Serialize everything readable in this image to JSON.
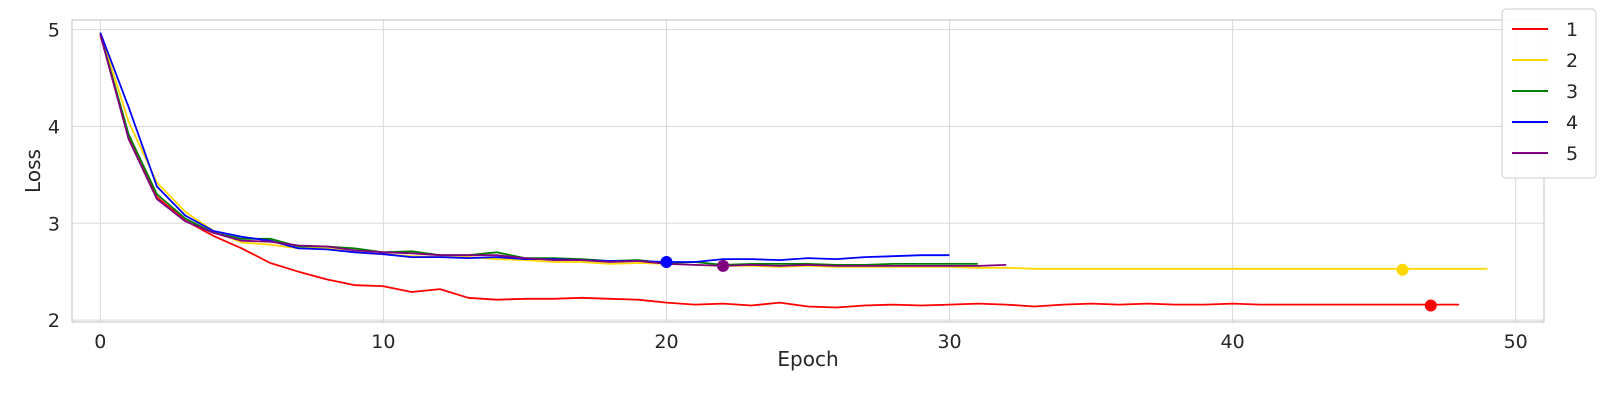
{
  "chart_data": {
    "type": "line",
    "title": "",
    "xlabel": "Epoch",
    "ylabel": "Loss",
    "xlim": [
      -1,
      51
    ],
    "ylim": [
      1.98,
      5.1
    ],
    "xticks": [
      0,
      10,
      20,
      30,
      40,
      50
    ],
    "yticks": [
      2,
      3,
      4,
      5
    ],
    "grid": true,
    "legend_position": "top-right",
    "series": [
      {
        "name": "1",
        "color": "#ff0000",
        "values": [
          4.95,
          3.9,
          3.27,
          3.03,
          2.87,
          2.74,
          2.59,
          2.5,
          2.42,
          2.36,
          2.35,
          2.29,
          2.32,
          2.23,
          2.21,
          2.22,
          2.22,
          2.23,
          2.22,
          2.21,
          2.18,
          2.16,
          2.17,
          2.15,
          2.18,
          2.14,
          2.13,
          2.15,
          2.16,
          2.15,
          2.16,
          2.17,
          2.16,
          2.14,
          2.16,
          2.17,
          2.16,
          2.17,
          2.16,
          2.16,
          2.17,
          2.16,
          2.16,
          2.16,
          2.16,
          2.16,
          2.16,
          2.16,
          2.16
        ],
        "marker": {
          "x": 47,
          "y": 2.15
        }
      },
      {
        "name": "2",
        "color": "#ffd700",
        "values": [
          4.97,
          4.05,
          3.42,
          3.12,
          2.92,
          2.8,
          2.78,
          2.74,
          2.74,
          2.7,
          2.68,
          2.66,
          2.65,
          2.65,
          2.63,
          2.62,
          2.6,
          2.6,
          2.58,
          2.59,
          2.58,
          2.57,
          2.56,
          2.56,
          2.55,
          2.56,
          2.55,
          2.55,
          2.55,
          2.55,
          2.55,
          2.54,
          2.54,
          2.53,
          2.53,
          2.53,
          2.53,
          2.53,
          2.53,
          2.53,
          2.53,
          2.53,
          2.53,
          2.53,
          2.53,
          2.53,
          2.53,
          2.53,
          2.53,
          2.53
        ],
        "marker": {
          "x": 46,
          "y": 2.52
        }
      },
      {
        "name": "3",
        "color": "#008000",
        "values": [
          4.95,
          3.92,
          3.3,
          3.05,
          2.9,
          2.84,
          2.84,
          2.76,
          2.76,
          2.74,
          2.7,
          2.71,
          2.67,
          2.67,
          2.7,
          2.64,
          2.64,
          2.63,
          2.61,
          2.62,
          2.59,
          2.6,
          2.57,
          2.58,
          2.58,
          2.58,
          2.57,
          2.57,
          2.58,
          2.58,
          2.58,
          2.58
        ]
      },
      {
        "name": "4",
        "color": "#0000ff",
        "values": [
          4.97,
          4.2,
          3.38,
          3.08,
          2.92,
          2.86,
          2.82,
          2.74,
          2.73,
          2.7,
          2.68,
          2.65,
          2.65,
          2.64,
          2.65,
          2.63,
          2.63,
          2.62,
          2.61,
          2.61,
          2.6,
          2.6,
          2.63,
          2.63,
          2.62,
          2.64,
          2.63,
          2.65,
          2.66,
          2.67,
          2.67
        ],
        "marker": {
          "x": 20,
          "y": 2.6
        }
      },
      {
        "name": "5",
        "color": "#800080",
        "values": [
          4.95,
          3.87,
          3.25,
          3.02,
          2.9,
          2.82,
          2.81,
          2.77,
          2.76,
          2.72,
          2.7,
          2.69,
          2.67,
          2.67,
          2.67,
          2.64,
          2.62,
          2.62,
          2.6,
          2.61,
          2.58,
          2.57,
          2.56,
          2.57,
          2.56,
          2.57,
          2.56,
          2.56,
          2.56,
          2.56,
          2.56,
          2.56,
          2.57
        ],
        "marker": {
          "x": 22,
          "y": 2.56
        }
      }
    ]
  }
}
